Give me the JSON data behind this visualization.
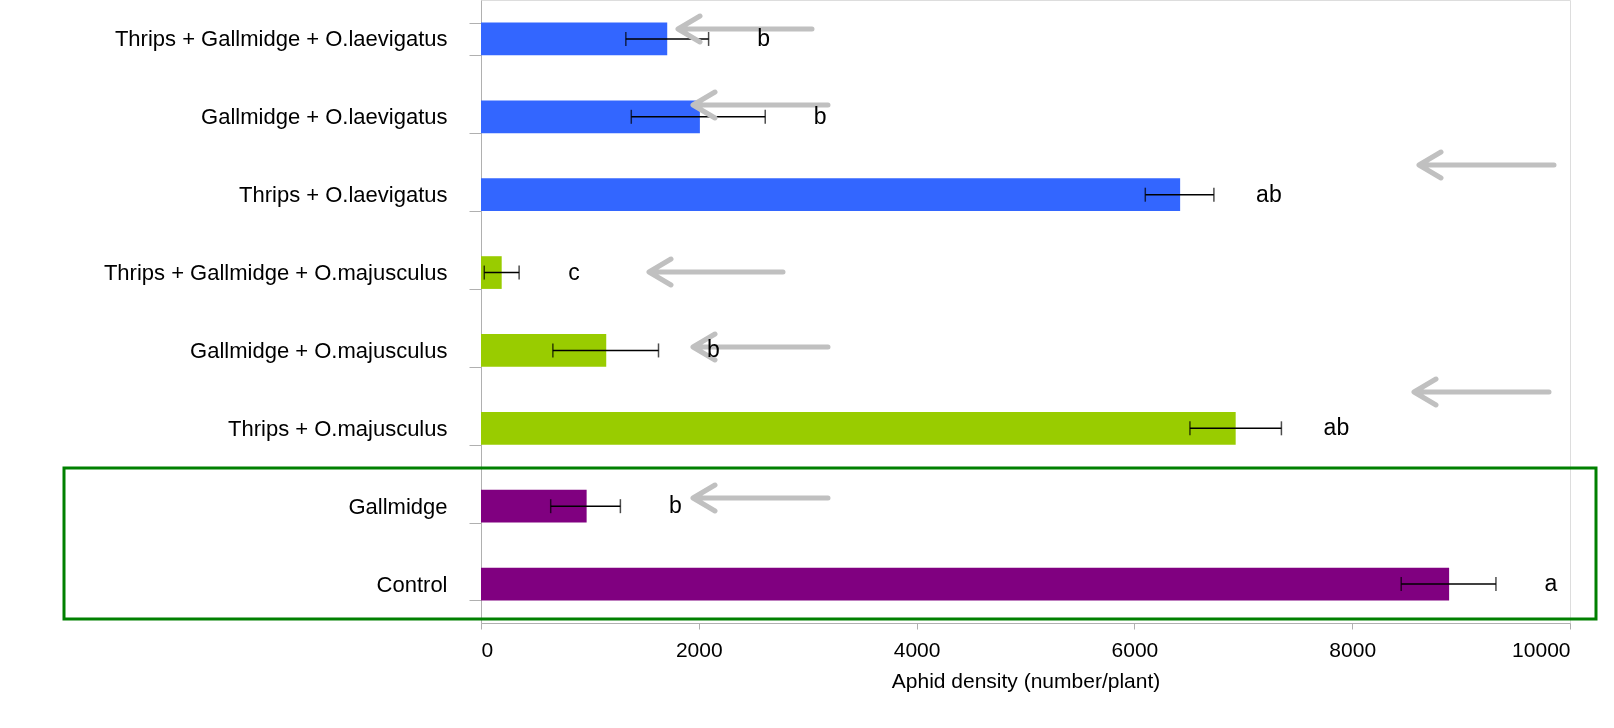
{
  "chart_data": {
    "type": "bar",
    "orientation": "horizontal",
    "xlabel": "Aphid density (number/plant)",
    "categories": [
      "Thrips + Gallmidge + O.laevigatus",
      "Gallmidge + O.laevigatus",
      "Thrips + O.laevigatus",
      "Thrips + Gallmidge + O.majusculus",
      "Gallmidge + O.majusculus",
      "Thrips + O.majusculus",
      "Gallmidge",
      "Control"
    ],
    "values": [
      1710,
      2010,
      6420,
      190,
      1150,
      6930,
      970,
      8890
    ],
    "colors": [
      "#3366ff",
      "#3366ff",
      "#3366ff",
      "#99cc00",
      "#99cc00",
      "#99cc00",
      "#800080",
      "#800080"
    ],
    "errors": [
      [
        1330,
        2090
      ],
      [
        1380,
        2610
      ],
      [
        6100,
        6730
      ],
      [
        30,
        350
      ],
      [
        660,
        1630
      ],
      [
        6510,
        7350
      ],
      [
        640,
        1280
      ],
      [
        8450,
        9320
      ]
    ],
    "xlim": [
      0,
      10000
    ],
    "xticks": [
      0,
      2000,
      4000,
      6000,
      8000,
      10000
    ],
    "grid": false,
    "annotations": [
      "b",
      "b",
      "ab",
      "c",
      "b",
      "ab",
      "b",
      "a"
    ]
  }
}
